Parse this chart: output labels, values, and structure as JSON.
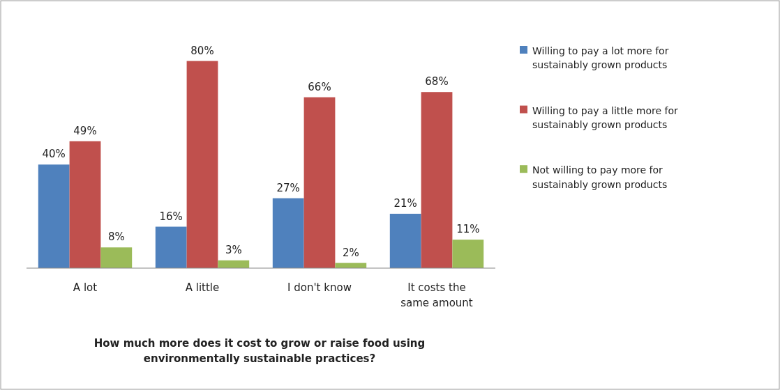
{
  "chart_data": {
    "type": "bar",
    "xlabel": "How much more does it cost to grow or raise food using environmentally sustainable practices?",
    "categories": [
      "A lot",
      "A little",
      "I don't know",
      "It costs the same amount"
    ],
    "series": [
      {
        "name": "Willing to pay a lot more for sustainably grown products",
        "color": "#4f81bd",
        "values": [
          40,
          16,
          27,
          21
        ],
        "value_labels": [
          "40%",
          "16%",
          "27%",
          "21%"
        ]
      },
      {
        "name": "Willing to pay a little more for sustainably grown products",
        "color": "#c0504d",
        "values": [
          49,
          80,
          66,
          68
        ],
        "value_labels": [
          "49%",
          "80%",
          "66%",
          "68%"
        ]
      },
      {
        "name": "Not willing to pay more for sustainably grown products",
        "color": "#9bbb59",
        "values": [
          8,
          3,
          2,
          11
        ],
        "value_labels": [
          "8%",
          "3%",
          "2%",
          "11%"
        ]
      }
    ],
    "legend": "right"
  }
}
